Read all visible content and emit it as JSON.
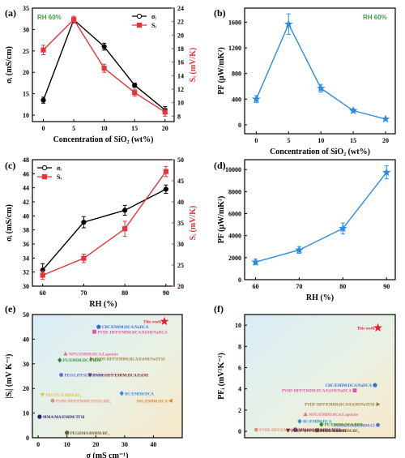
{
  "colors": {
    "black": "#000000",
    "red": "#e3343a",
    "blue": "#2b8be6",
    "green_note": "#3aa547"
  },
  "chart_data": [
    {
      "id": "a",
      "letter": "(a)",
      "type": "line",
      "note": "RH 60%",
      "x": [
        0,
        5,
        10,
        15,
        20
      ],
      "xlabel": "Concentration of SiO₂ (wt%)",
      "xlim": [
        -1.8,
        21.5
      ],
      "xticks": [
        0,
        5,
        10,
        15,
        20
      ],
      "ylabel": "σᵢ (mS/cm)",
      "ylim": [
        8.5,
        35
      ],
      "yticks": [
        10,
        15,
        20,
        25,
        30,
        35
      ],
      "ylabel_right": "Sᵢ (mV/K)",
      "ylim_right": [
        7.2,
        24
      ],
      "yticks_right": [
        8,
        10,
        12,
        14,
        16,
        18,
        20,
        22,
        24
      ],
      "series": [
        {
          "name": "σᵢ",
          "axis": "left",
          "marker": "circle",
          "values": [
            13.5,
            32.3,
            26.0,
            17.0,
            11.2
          ],
          "errors": [
            0.7,
            0.8,
            0.8,
            0.5,
            0.8
          ]
        },
        {
          "name": "Sᵢ",
          "axis": "right",
          "marker": "square",
          "values": [
            17.8,
            22.3,
            15.1,
            11.5,
            8.6
          ],
          "errors": [
            0.7,
            0.5,
            0.6,
            0.5,
            0.6
          ]
        }
      ],
      "legend": "top-right"
    },
    {
      "id": "b",
      "letter": "(b)",
      "type": "line",
      "note": "RH 60%",
      "x": [
        0,
        5,
        10,
        15,
        20
      ],
      "xlabel": "Concentration of SiO₂ (wt%)",
      "xlim": [
        -1.8,
        21.5
      ],
      "xticks": [
        0,
        5,
        10,
        15,
        20
      ],
      "ylabel": "PF (μW/mK²)",
      "ylim": [
        -140,
        1820
      ],
      "yticks": [
        0,
        400,
        800,
        1200,
        1600
      ],
      "series": [
        {
          "name": "PF",
          "marker": "star",
          "values": [
            400,
            1570,
            570,
            220,
            90
          ],
          "errors": [
            55,
            160,
            60,
            28,
            15
          ]
        }
      ]
    },
    {
      "id": "c",
      "letter": "(c)",
      "type": "line",
      "x": [
        60,
        70,
        80,
        90
      ],
      "xlabel": "RH (%)",
      "xlim": [
        57.5,
        92
      ],
      "xticks": [
        60,
        70,
        80,
        90
      ],
      "ylabel": "σᵢ (mS/cm)",
      "ylim": [
        30,
        48
      ],
      "yticks": [
        30,
        32,
        34,
        36,
        38,
        40,
        42,
        44,
        46,
        48
      ],
      "ylabel_right": "Sᵢ (mV/K)",
      "ylim_right": [
        20,
        50
      ],
      "yticks_right": [
        20,
        25,
        30,
        35,
        40,
        45,
        50
      ],
      "series": [
        {
          "name": "σᵢ",
          "axis": "left",
          "marker": "circle",
          "values": [
            32.3,
            39.1,
            40.8,
            43.8
          ],
          "errors": [
            0.9,
            0.8,
            0.7,
            0.6
          ]
        },
        {
          "name": "Sᵢ",
          "axis": "right",
          "marker": "square",
          "values": [
            22.6,
            26.6,
            33.6,
            47.2
          ],
          "errors": [
            1.0,
            1.0,
            1.8,
            1.2
          ]
        }
      ],
      "legend": "top-left"
    },
    {
      "id": "d",
      "letter": "(d)",
      "type": "line",
      "x": [
        60,
        70,
        80,
        90
      ],
      "xlabel": "RH (%)",
      "xlim": [
        57.5,
        92
      ],
      "xticks": [
        60,
        70,
        80,
        90
      ],
      "ylabel": "PF (μW/mK²)",
      "ylim": [
        0,
        10900
      ],
      "yticks": [
        0,
        2000,
        4000,
        6000,
        8000,
        10000
      ],
      "series": [
        {
          "name": "PF",
          "marker": "star",
          "values": [
            1600,
            2700,
            4650,
            9750
          ],
          "errors": [
            250,
            300,
            500,
            600
          ]
        }
      ]
    },
    {
      "id": "e",
      "letter": "(e)",
      "type": "scatter",
      "xlabel": "σ (mS cm⁻¹)",
      "xlim": [
        -2,
        50
      ],
      "xticks": [
        0,
        10,
        20,
        30,
        40
      ],
      "ylabel": "|Sᵢ| (mV K⁻¹)",
      "ylim": [
        0,
        50
      ],
      "yticks": [
        0,
        10,
        20,
        30,
        40,
        50
      ],
      "points": [
        {
          "label": "This work",
          "x": 43.8,
          "y": 47.2,
          "marker": "star",
          "color": "#e8202a",
          "big": true
        },
        {
          "label": "CBC/EMIM:DCA/NaDCA",
          "x": 21,
          "y": 45,
          "marker": "pentagon",
          "color": "#2e6fd6"
        },
        {
          "label": "PVDF-HFP/EMIM:DCA/EtOH/NaDCA",
          "x": 19.5,
          "y": 43,
          "marker": "square",
          "color": "#d9589f"
        },
        {
          "label": "WPU/EMIM:DCA/Laponite",
          "x": 9.5,
          "y": 34,
          "marker": "triangle-up",
          "color": "#e86a8e"
        },
        {
          "label": "PVDF-HFP/EMIM:DCA/EtOH/NaTFSI",
          "x": 18.5,
          "y": 32,
          "marker": "triangle-right",
          "color": "#9a7a3a"
        },
        {
          "label": "PU/EMIM:DCA/BDB",
          "x": 7.5,
          "y": 31.5,
          "marker": "diamond",
          "color": "#2e8b2e"
        },
        {
          "label": "PVDF-HFP/EMIM:DCA/EtOH",
          "x": 18,
          "y": 25.5,
          "marker": "triangle-down",
          "color": "#7a1f1f"
        },
        {
          "label": "PEO/LiTFSI/EMIM:Cl",
          "x": 8,
          "y": 25.5,
          "marker": "circle",
          "color": "#5a6ad6"
        },
        {
          "label": "BC/EMIM:DCA",
          "x": 29,
          "y": 18,
          "marker": "diamond",
          "color": "#2b8be6"
        },
        {
          "label": "PEO/PU/EMIM:BF₄",
          "x": 1.5,
          "y": 17.5,
          "marker": "triangle-down",
          "color": "#e8c040"
        },
        {
          "label": "PVDF-HFP/EMIM:TFSI/LiBF₄",
          "x": 5,
          "y": 15,
          "marker": "circle",
          "color": "#e88a78"
        },
        {
          "label": "SiO₂/EMIM:DCA",
          "x": 46,
          "y": 15,
          "marker": "triangle-left",
          "color": "#e0852a"
        },
        {
          "label": "MMA/MA/EMIM:TFSI",
          "x": 0.5,
          "y": 8.5,
          "marker": "hexagon",
          "color": "#2a1f6a"
        },
        {
          "label": "PEGDMA/BMIM:BF₄",
          "x": 10,
          "y": 2,
          "marker": "pentagon",
          "color": "#6a5a1f"
        }
      ]
    },
    {
      "id": "f",
      "letter": "(f)",
      "type": "scatter",
      "xlabel": "",
      "xlim": [
        -2,
        50
      ],
      "xticks": [],
      "ylabel": "PFᵢ (mV²K⁻²)",
      "ylim": [
        -0.6,
        11
      ],
      "yticks": [
        0,
        2,
        4,
        6,
        8,
        10
      ],
      "points": [
        {
          "label": "This work",
          "x": 44,
          "y": 9.75,
          "marker": "star",
          "color": "#e8202a",
          "big": true
        },
        {
          "label": "CBC/EMIM:DCA/NaDCA",
          "x": 43,
          "y": 4.35,
          "marker": "pentagon",
          "color": "#2e6fd6"
        },
        {
          "label": "PVDF-HFP/EMIM:DCA/EtOH/NaDCA",
          "x": 36,
          "y": 3.85,
          "marker": "square",
          "color": "#d9589f"
        },
        {
          "label": "PVDF-HFP/EMIM:DCA/EtOH/NaTFSI",
          "x": 44,
          "y": 2.55,
          "marker": "triangle-right",
          "color": "#9a7a3a"
        },
        {
          "label": "WPU/EMIM:DCA/Laponite",
          "x": 19,
          "y": 1.6,
          "marker": "triangle-up",
          "color": "#e86a8e"
        },
        {
          "label": "PEO/LiTFSI/EMIM:Cl",
          "x": 44,
          "y": 0.6,
          "marker": "circle",
          "color": "#5a6ad6"
        },
        {
          "label": "BC/EMIM:DCA",
          "x": 17,
          "y": 0.95,
          "marker": "diamond",
          "color": "#2b8be6"
        },
        {
          "label": "PU/EMIM:DCA/BDB",
          "x": 24.5,
          "y": 0.65,
          "marker": "diamond",
          "color": "#2e8b2e"
        },
        {
          "label": "MMA/MA/EMIM:TFSI",
          "x": 15.5,
          "y": 0.15,
          "marker": "hexagon",
          "color": "#2a1f6a"
        },
        {
          "label": "PEGDMA/BMIM:BF₄",
          "x": 23,
          "y": 0.1,
          "marker": "pentagon",
          "color": "#6a5a1f"
        },
        {
          "label": "PVDF-HFP/EMIM:TFSI/LiBF₄",
          "x": 2,
          "y": 0.15,
          "marker": "circle",
          "color": "#e88a78"
        },
        {
          "label": "PVDF-HFP/EMIM:DCA/EtOH",
          "x": 13,
          "y": 0.1,
          "marker": "triangle-down",
          "color": "#7a1f1f"
        }
      ]
    }
  ]
}
